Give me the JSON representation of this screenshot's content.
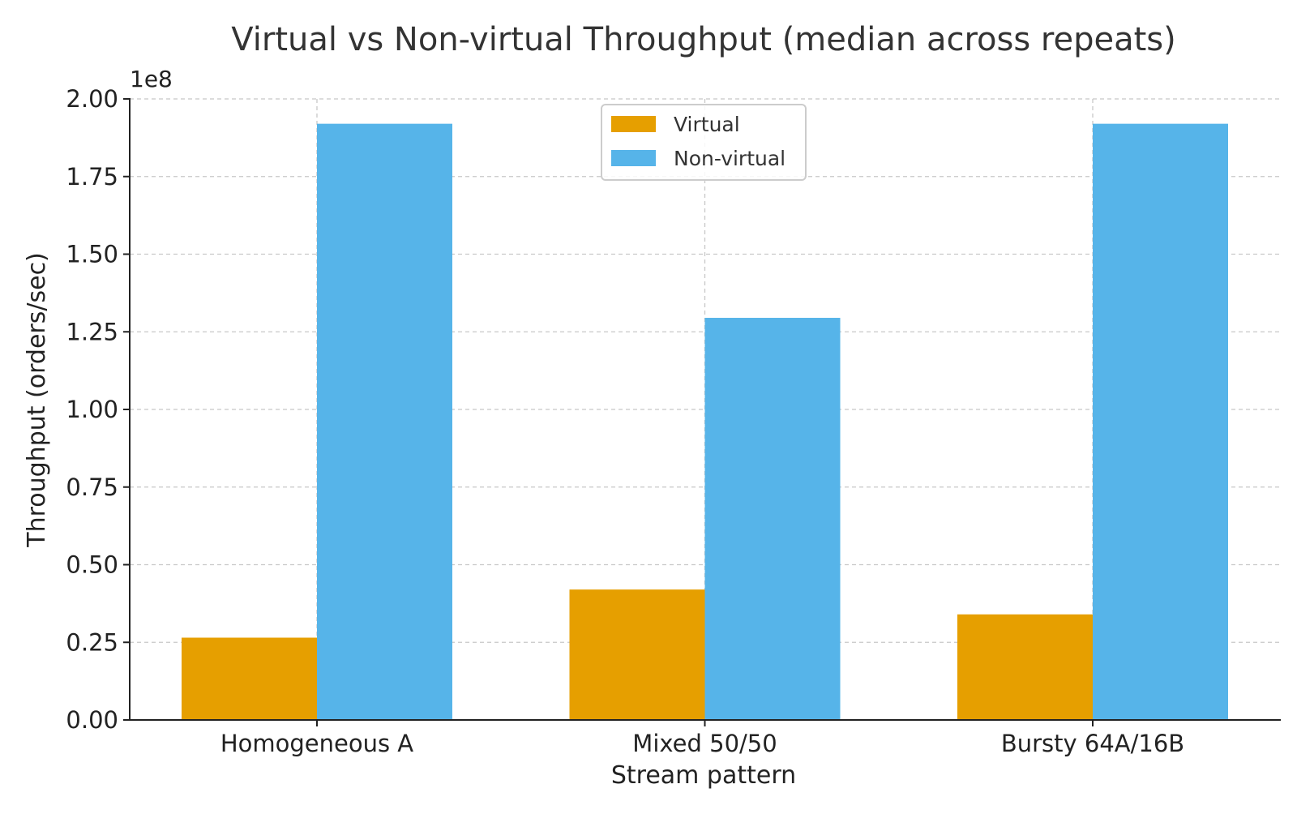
{
  "chart_data": {
    "type": "bar",
    "title": "Virtual vs Non-virtual Throughput (median across repeats)",
    "xlabel": "Stream pattern",
    "ylabel": "Throughput (orders/sec)",
    "y_offset_text": "1e8",
    "y_scale_factor": 100000000,
    "ylim": [
      0,
      2.0
    ],
    "yticks": [
      "0.00",
      "0.25",
      "0.50",
      "0.75",
      "1.00",
      "1.25",
      "1.50",
      "1.75",
      "2.00"
    ],
    "ytick_values": [
      0,
      0.25,
      0.5,
      0.75,
      1.0,
      1.25,
      1.5,
      1.75,
      2.0
    ],
    "categories": [
      "Homogeneous A",
      "Mixed 50/50",
      "Bursty 64A/16B"
    ],
    "series": [
      {
        "name": "Virtual",
        "color": "#E69F00",
        "values": [
          26500000,
          42000000,
          34000000
        ]
      },
      {
        "name": "Non-virtual",
        "color": "#56B4E9",
        "values": [
          192000000,
          129500000,
          192000000
        ]
      }
    ],
    "grid": true,
    "legend_position": "top-center"
  }
}
